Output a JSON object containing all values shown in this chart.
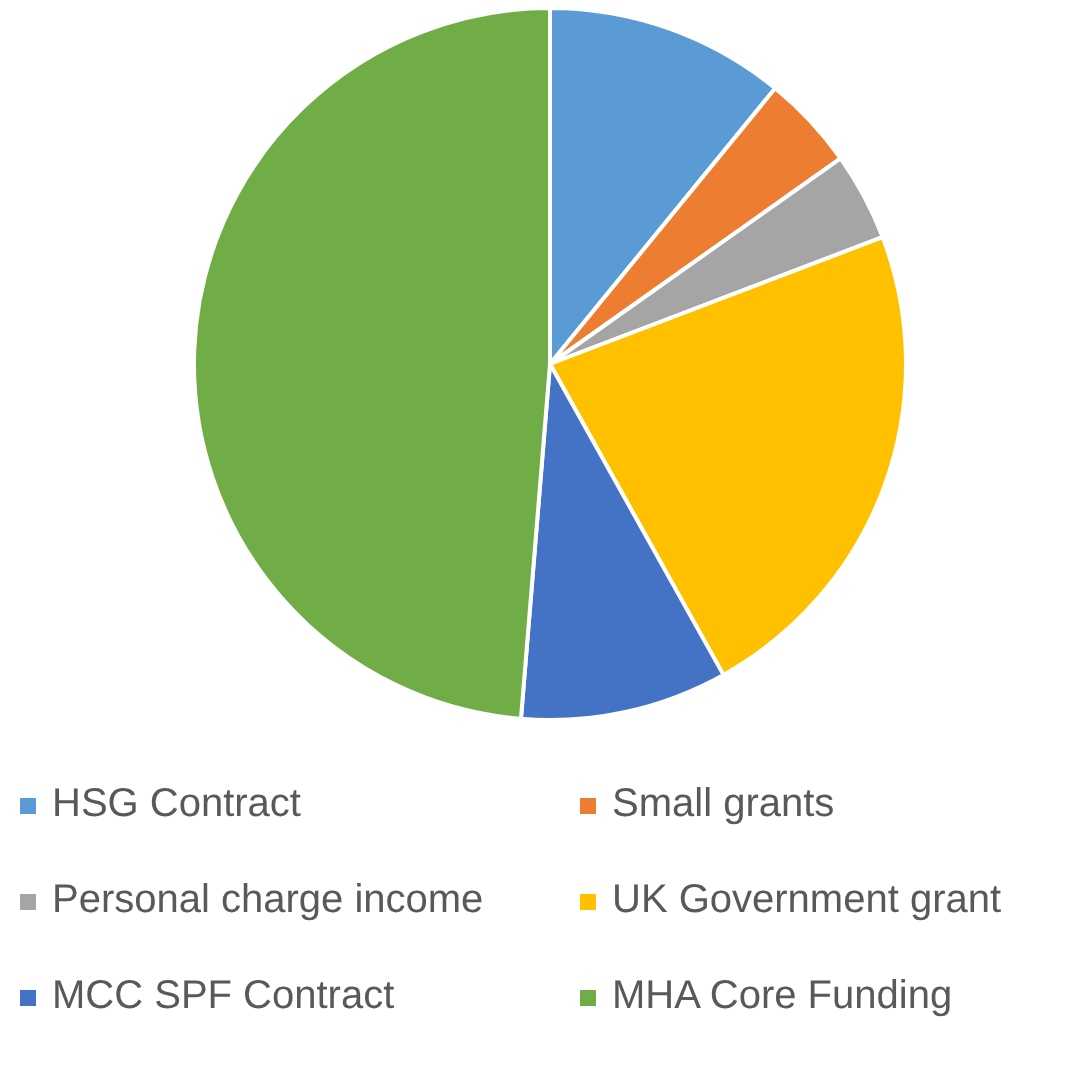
{
  "chart_data": {
    "type": "pie",
    "categories": [
      "HSG Contract",
      "Small grants",
      "Personal charge income",
      "UK Government grant",
      "MCC SPF Contract",
      "MHA Core Funding"
    ],
    "values": [
      10.9,
      4.3,
      4.0,
      22.7,
      9.4,
      48.7
    ],
    "colors": [
      "#5b9bd5",
      "#ed7d31",
      "#a5a5a5",
      "#ffc000",
      "#4472c4",
      "#70ad47"
    ],
    "legend": "bottom"
  }
}
